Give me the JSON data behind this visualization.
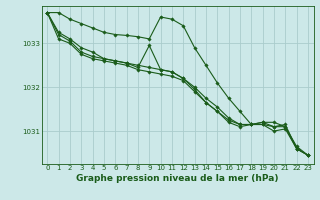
{
  "bg_color": "#cce8e8",
  "grid_color": "#aacccc",
  "line_color": "#1a5c1a",
  "marker_color": "#1a5c1a",
  "xlabel": "Graphe pression niveau de la mer (hPa)",
  "xlabel_fontsize": 6.5,
  "xlim": [
    -0.5,
    23.5
  ],
  "ylim": [
    1030.25,
    1033.85
  ],
  "yticks": [
    1031,
    1032,
    1033
  ],
  "xticks": [
    0,
    1,
    2,
    3,
    4,
    5,
    6,
    7,
    8,
    9,
    10,
    11,
    12,
    13,
    14,
    15,
    16,
    17,
    18,
    19,
    20,
    21,
    22,
    23
  ],
  "series": [
    [
      1033.7,
      1033.7,
      1033.55,
      1033.45,
      1033.35,
      1033.25,
      1033.2,
      1033.18,
      1033.15,
      1033.1,
      1033.6,
      1033.55,
      1033.4,
      1032.9,
      1032.5,
      1032.1,
      1031.75,
      1031.45,
      1031.15,
      1031.2,
      1031.2,
      1031.1,
      1030.65,
      1030.45
    ],
    [
      1033.7,
      1033.25,
      1033.1,
      1032.9,
      1032.8,
      1032.65,
      1032.6,
      1032.55,
      1032.5,
      1032.45,
      1032.4,
      1032.35,
      1032.2,
      1031.95,
      1031.65,
      1031.45,
      1031.25,
      1031.15,
      1031.15,
      1031.15,
      1031.0,
      1031.05,
      1030.6,
      1030.45
    ],
    [
      1033.7,
      1033.2,
      1033.05,
      1032.8,
      1032.7,
      1032.65,
      1032.6,
      1032.55,
      1032.45,
      1032.95,
      1032.4,
      1032.35,
      1032.2,
      1032.0,
      1031.75,
      1031.55,
      1031.3,
      1031.15,
      1031.15,
      1031.2,
      1031.1,
      1031.1,
      1030.6,
      1030.45
    ],
    [
      1033.7,
      1033.1,
      1033.0,
      1032.75,
      1032.65,
      1032.6,
      1032.55,
      1032.5,
      1032.4,
      1032.35,
      1032.3,
      1032.25,
      1032.15,
      1031.9,
      1031.65,
      1031.45,
      1031.2,
      1031.1,
      1031.15,
      1031.15,
      1031.1,
      1031.15,
      1030.6,
      1030.45
    ]
  ]
}
